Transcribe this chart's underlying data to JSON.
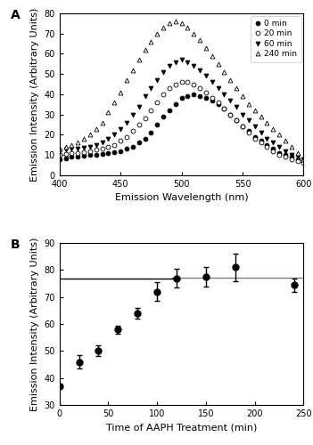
{
  "panel_A": {
    "xlabel": "Emission Wavelength (nm)",
    "ylabel": "Emission Intensity (Arbitrary Units)",
    "xlim": [
      400,
      600
    ],
    "ylim": [
      0,
      80
    ],
    "yticks": [
      0,
      10,
      20,
      30,
      40,
      50,
      60,
      70,
      80
    ],
    "xticks": [
      400,
      450,
      500,
      550,
      600
    ],
    "label": "A",
    "series": {
      "0min": {
        "label": "0 min",
        "marker": "o",
        "fillstyle": "full",
        "wavelengths": [
          400,
          405,
          410,
          415,
          420,
          425,
          430,
          435,
          440,
          445,
          450,
          455,
          460,
          465,
          470,
          475,
          480,
          485,
          490,
          495,
          500,
          505,
          510,
          515,
          520,
          525,
          530,
          535,
          540,
          545,
          550,
          555,
          560,
          565,
          570,
          575,
          580,
          585,
          590,
          595,
          600
        ],
        "intensities": [
          8,
          8.5,
          9,
          9,
          9.5,
          10,
          10,
          10.5,
          11,
          11.5,
          12,
          13,
          14,
          16,
          18,
          21,
          25,
          29,
          32,
          35,
          38,
          39,
          40,
          39,
          38,
          37,
          35,
          33,
          30,
          27,
          24,
          22,
          19,
          17,
          15,
          13,
          11,
          10,
          9,
          8,
          7
        ]
      },
      "20min": {
        "label": "20 min",
        "marker": "o",
        "fillstyle": "none",
        "wavelengths": [
          400,
          405,
          410,
          415,
          420,
          425,
          430,
          435,
          440,
          445,
          450,
          455,
          460,
          465,
          470,
          475,
          480,
          485,
          490,
          495,
          500,
          505,
          510,
          515,
          520,
          525,
          530,
          535,
          540,
          545,
          550,
          555,
          560,
          565,
          570,
          575,
          580,
          585,
          590,
          595,
          600
        ],
        "intensities": [
          10,
          10.5,
          11,
          11,
          11.5,
          12,
          12.5,
          13,
          14,
          15,
          17,
          19,
          22,
          25,
          28,
          32,
          36,
          40,
          43,
          45,
          46,
          46,
          45,
          43,
          41,
          38,
          36,
          33,
          30,
          27,
          24,
          21,
          18,
          16,
          14,
          12,
          10,
          9,
          8,
          7,
          6
        ]
      },
      "60min": {
        "label": "60 min",
        "marker": "v",
        "fillstyle": "full",
        "wavelengths": [
          400,
          405,
          410,
          415,
          420,
          425,
          430,
          435,
          440,
          445,
          450,
          455,
          460,
          465,
          470,
          475,
          480,
          485,
          490,
          495,
          500,
          505,
          510,
          515,
          520,
          525,
          530,
          535,
          540,
          545,
          550,
          555,
          560,
          565,
          570,
          575,
          580,
          585,
          590,
          595,
          600
        ],
        "intensities": [
          12,
          12.5,
          13,
          13,
          13.5,
          14,
          15,
          16,
          18,
          20,
          23,
          26,
          30,
          34,
          39,
          43,
          47,
          51,
          54,
          56,
          57,
          56,
          54,
          52,
          49,
          46,
          43,
          40,
          37,
          34,
          30,
          27,
          24,
          21,
          18,
          16,
          14,
          12,
          10,
          9,
          8
        ]
      },
      "240min": {
        "label": "240 min",
        "marker": "^",
        "fillstyle": "none",
        "wavelengths": [
          400,
          405,
          410,
          415,
          420,
          425,
          430,
          435,
          440,
          445,
          450,
          455,
          460,
          465,
          470,
          475,
          480,
          485,
          490,
          495,
          500,
          505,
          510,
          515,
          520,
          525,
          530,
          535,
          540,
          545,
          550,
          555,
          560,
          565,
          570,
          575,
          580,
          585,
          590,
          595,
          600
        ],
        "intensities": [
          13,
          14,
          15,
          16,
          18,
          20,
          23,
          26,
          31,
          36,
          41,
          47,
          52,
          57,
          62,
          66,
          70,
          73,
          75,
          76,
          75,
          73,
          70,
          67,
          63,
          59,
          55,
          51,
          47,
          43,
          39,
          35,
          32,
          29,
          26,
          23,
          20,
          17,
          14,
          11,
          8
        ]
      }
    },
    "legend_loc": "upper right"
  },
  "panel_B": {
    "xlabel": "Time of AAPH Treatment (min)",
    "ylabel": "Emission Intensity (Arbitrary Units)",
    "xlim": [
      0,
      250
    ],
    "ylim": [
      30,
      90
    ],
    "yticks": [
      30,
      40,
      50,
      60,
      70,
      80,
      90
    ],
    "xticks": [
      0,
      50,
      100,
      150,
      200,
      250
    ],
    "label": "B",
    "x": [
      0,
      20,
      40,
      60,
      80,
      100,
      120,
      150,
      180,
      240
    ],
    "y": [
      37,
      46,
      50,
      58,
      64,
      72,
      77,
      77.5,
      81,
      74.5
    ],
    "yerr": [
      0.5,
      2.5,
      2.0,
      1.5,
      2.0,
      3.5,
      3.5,
      3.5,
      5.0,
      2.5
    ],
    "plateau_y": 77.3,
    "plateau_x_start": 115,
    "plateau_x_end": 250
  }
}
